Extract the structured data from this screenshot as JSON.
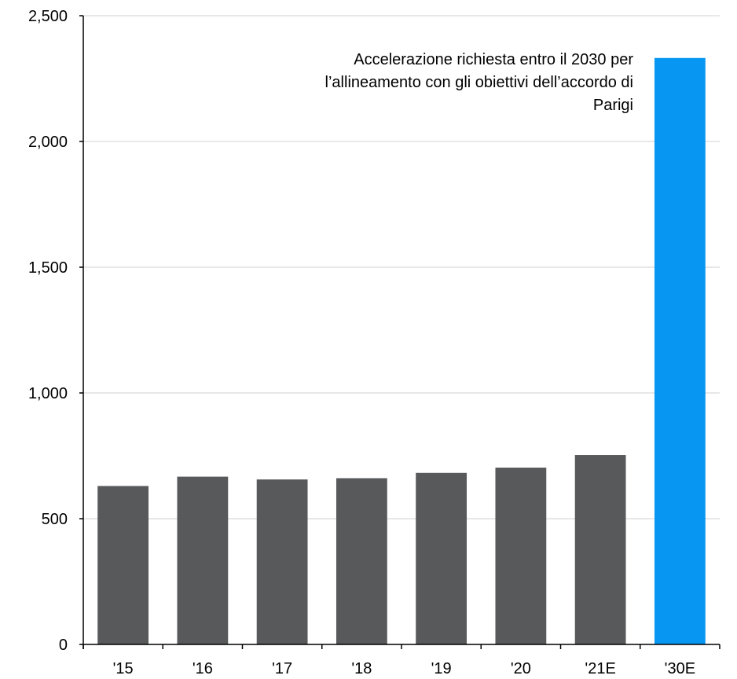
{
  "chart_data": {
    "type": "bar",
    "categories": [
      "'15",
      "'16",
      "'17",
      "'18",
      "'19",
      "'20",
      "'21E",
      "'30E"
    ],
    "values": [
      630,
      667,
      656,
      661,
      682,
      703,
      753,
      2332
    ],
    "title": "",
    "xlabel": "",
    "ylabel": "",
    "ylim": [
      0,
      2500
    ],
    "yticks": [
      0,
      500,
      1000,
      1500,
      2000,
      2500
    ],
    "ytick_labels": [
      "0",
      "500",
      "1,000",
      "1,500",
      "2,000",
      "2,500"
    ],
    "grid": true,
    "bar_colors": [
      "#58595b",
      "#58595b",
      "#58595b",
      "#58595b",
      "#58595b",
      "#58595b",
      "#58595b",
      "#0796f2"
    ],
    "annotation": "Accelerazione richiesta entro il 2030 per l’allineamento con gli obiettivi dell’accordo di Parigi"
  }
}
